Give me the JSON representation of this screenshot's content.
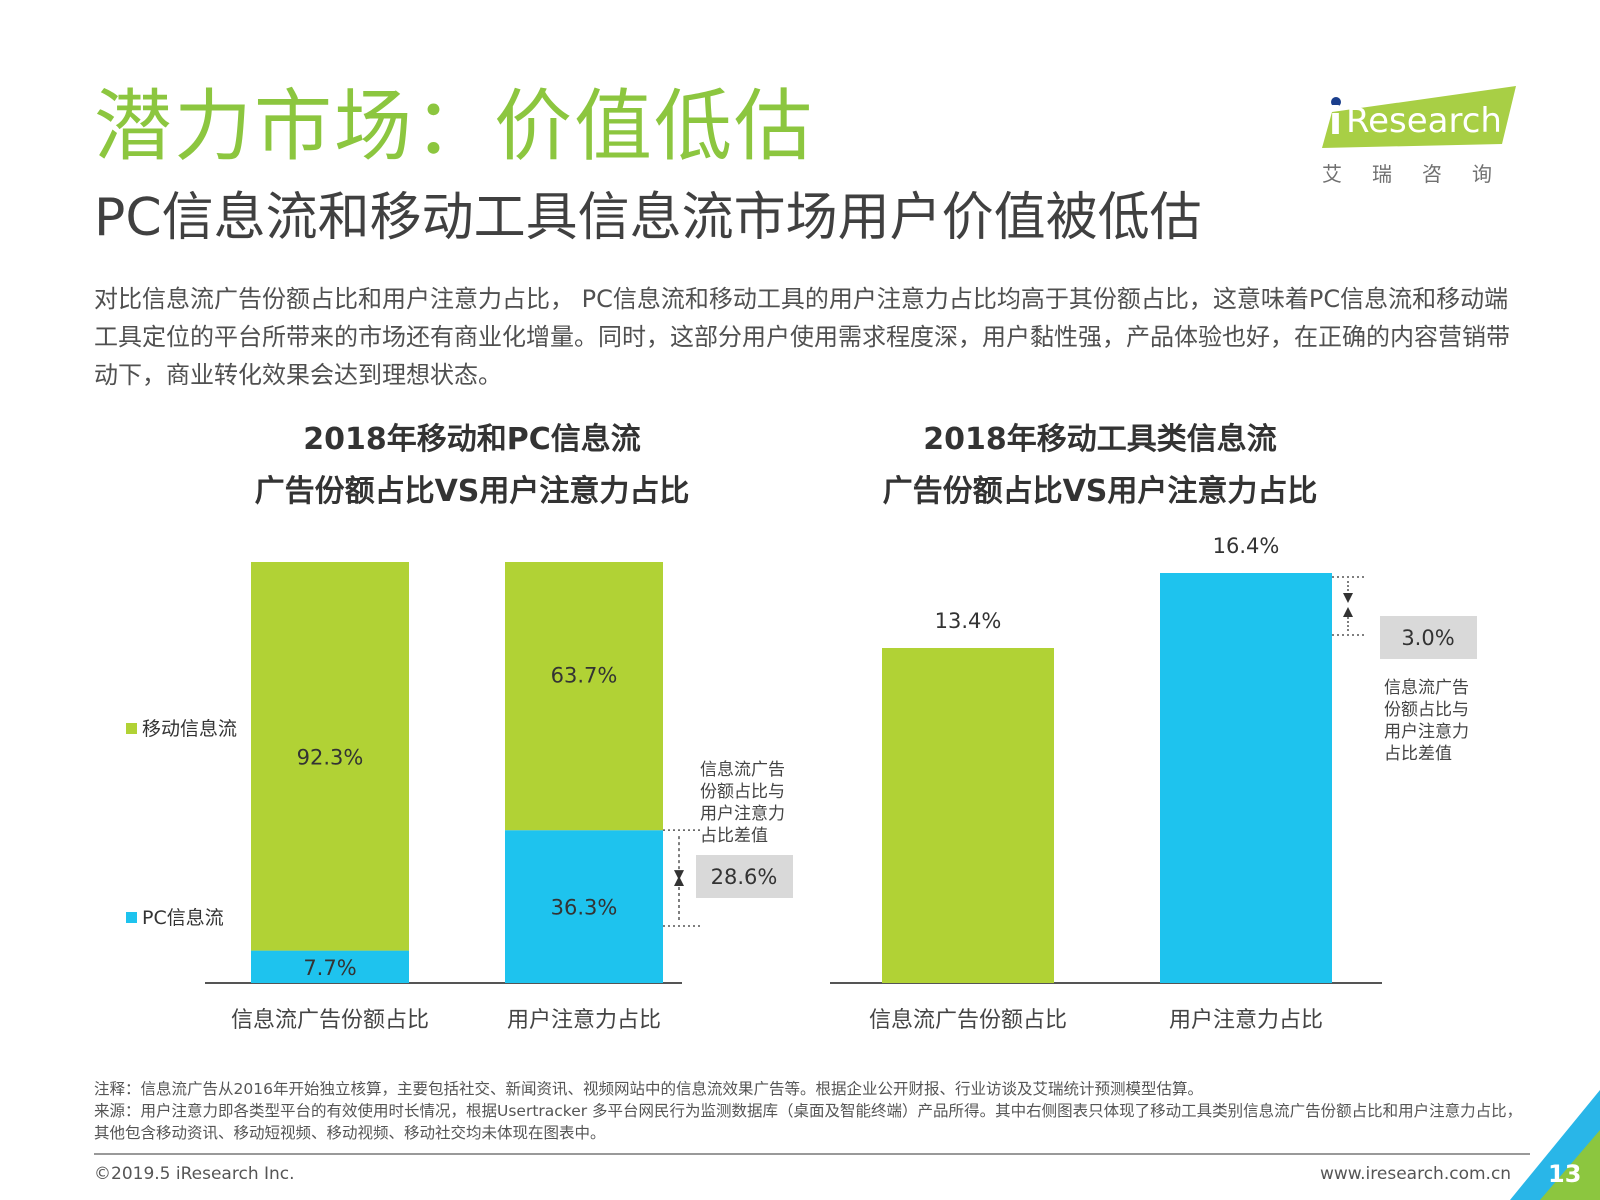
{
  "header": {
    "title": "潜力市场：价值低估",
    "subtitle": "PC信息流和移动工具信息流市场用户价值被低估",
    "intro": "对比信息流广告份额占比和用户注意力占比， PC信息流和移动工具的用户注意力占比均高于其份额占比，这意味着PC信息流和移动端工具定位的平台所带来的市场还有商业化增量。同时，这部分用户使用需求程度深，用户黏性强，产品体验也好，在正确的内容营销带动下，商业转化效果会达到理想状态。"
  },
  "logo": {
    "brand_i": "i",
    "brand_rest": "Research",
    "chinese": "艾瑞咨询"
  },
  "colors": {
    "green": "#b1d235",
    "blue": "#1ec3ee",
    "title_green": "#8cc63f",
    "gray_box": "#d9d9d9"
  },
  "chart_data": [
    {
      "type": "bar",
      "stacked": true,
      "title_line1": "2018年移动和PC信息流",
      "title_line2": "广告份额占比VS用户注意力占比",
      "categories": [
        "信息流广告份额占比",
        "用户注意力占比"
      ],
      "series": [
        {
          "name": "PC信息流",
          "values": [
            7.7,
            36.3
          ],
          "labels": [
            "7.7%",
            "36.3%"
          ]
        },
        {
          "name": "移动信息流",
          "values": [
            92.3,
            63.7
          ],
          "labels": [
            "92.3%",
            "63.7%"
          ]
        }
      ],
      "ylim": [
        0,
        100
      ],
      "legend_position": "left",
      "annotation": {
        "text_lines": [
          "信息流广告",
          "份额占比与",
          "用户注意力",
          "占比差值"
        ],
        "diff_label": "28.6%"
      }
    },
    {
      "type": "bar",
      "title_line1": "2018年移动工具类信息流",
      "title_line2": "广告份额占比VS用户注意力占比",
      "categories": [
        "信息流广告份额占比",
        "用户注意力占比"
      ],
      "values": [
        13.4,
        16.4
      ],
      "labels": [
        "13.4%",
        "16.4%"
      ],
      "ylim": [
        0,
        20
      ],
      "annotation": {
        "text_lines": [
          "信息流广告",
          "份额占比与",
          "用户注意力",
          "占比差值"
        ],
        "diff_label": "3.0%"
      }
    }
  ],
  "footer": {
    "note1": "注释：信息流广告从2016年开始独立核算，主要包括社交、新闻资讯、视频网站中的信息流效果广告等。根据企业公开财报、行业访谈及艾瑞统计预测模型估算。",
    "note2": "来源：用户注意力即各类型平台的有效使用时长情况，根据Usertracker 多平台网民行为监测数据库（桌面及智能终端）产品所得。其中右侧图表只体现了移动工具类别信息流广告份额占比和用户注意力占比，其他包含移动资讯、移动短视频、移动视频、移动社交均未体现在图表中。",
    "copyright": "©2019.5 iResearch Inc.",
    "website": "www.iresearch.com.cn",
    "page": "13"
  }
}
